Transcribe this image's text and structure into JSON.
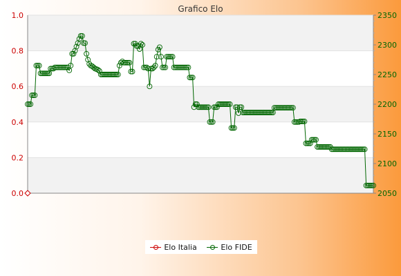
{
  "chart_data": {
    "type": "line",
    "title": "Grafico Elo",
    "y_left": {
      "min": 0,
      "max": 1,
      "ticks": [
        "0.0",
        "0.2",
        "0.4",
        "0.6",
        "0.8",
        "1.0"
      ],
      "color": "#cc0000"
    },
    "y_right": {
      "min": 2050,
      "max": 2350,
      "ticks": [
        "2050",
        "2100",
        "2150",
        "2200",
        "2250",
        "2300",
        "2350"
      ],
      "color": "#006600"
    },
    "grid": true,
    "legend_position": "bottom",
    "series": [
      {
        "name": "Elo Italia",
        "axis": "left",
        "color": "#cc0000",
        "values": [
          0.0
        ]
      },
      {
        "name": "Elo FIDE",
        "axis": "right",
        "color": "#006600",
        "values": [
          2200,
          2200,
          2200,
          2215,
          2215,
          2215,
          2265,
          2265,
          2265,
          2252,
          2252,
          2252,
          2252,
          2252,
          2252,
          2252,
          2260,
          2260,
          2260,
          2262,
          2262,
          2262,
          2262,
          2262,
          2262,
          2262,
          2262,
          2262,
          2262,
          2257,
          2265,
          2285,
          2285,
          2290,
          2297,
          2303,
          2310,
          2315,
          2315,
          2303,
          2303,
          2285,
          2275,
          2268,
          2265,
          2264,
          2262,
          2260,
          2259,
          2258,
          2256,
          2250,
          2250,
          2250,
          2250,
          2250,
          2250,
          2250,
          2250,
          2250,
          2250,
          2250,
          2250,
          2250,
          2265,
          2270,
          2272,
          2270,
          2270,
          2270,
          2270,
          2270,
          2255,
          2255,
          2302,
          2302,
          2298,
          2298,
          2293,
          2302,
          2300,
          2262,
          2262,
          2262,
          2260,
          2230,
          2260,
          2260,
          2262,
          2265,
          2280,
          2292,
          2296,
          2280,
          2262,
          2262,
          2262,
          2280,
          2280,
          2280,
          2280,
          2280,
          2262,
          2262,
          2262,
          2262,
          2262,
          2262,
          2262,
          2262,
          2262,
          2262,
          2262,
          2245,
          2245,
          2245,
          2195,
          2200,
          2200,
          2195,
          2195,
          2195,
          2195,
          2195,
          2195,
          2195,
          2195,
          2170,
          2170,
          2170,
          2195,
          2195,
          2195,
          2200,
          2200,
          2200,
          2200,
          2200,
          2200,
          2200,
          2200,
          2200,
          2160,
          2160,
          2160,
          2195,
          2195,
          2185,
          2195,
          2195,
          2186,
          2186,
          2186,
          2186,
          2186,
          2186,
          2186,
          2186,
          2186,
          2186,
          2186,
          2186,
          2186,
          2186,
          2186,
          2186,
          2186,
          2186,
          2186,
          2186,
          2186,
          2186,
          2194,
          2194,
          2194,
          2194,
          2194,
          2194,
          2194,
          2194,
          2194,
          2194,
          2194,
          2194,
          2194,
          2194,
          2170,
          2170,
          2170,
          2170,
          2171,
          2171,
          2171,
          2171,
          2134,
          2134,
          2134,
          2134,
          2140,
          2140,
          2140,
          2140,
          2128,
          2128,
          2128,
          2128,
          2128,
          2128,
          2128,
          2128,
          2128,
          2128,
          2124,
          2124,
          2124,
          2124,
          2124,
          2124,
          2124,
          2124,
          2124,
          2124,
          2124,
          2124,
          2124,
          2124,
          2124,
          2124,
          2124,
          2124,
          2124,
          2124,
          2124,
          2124,
          2124,
          2124,
          2063,
          2063,
          2063,
          2063,
          2063,
          2063
        ]
      }
    ]
  },
  "legend": {
    "italia": "Elo Italia",
    "fide": "Elo FIDE"
  }
}
